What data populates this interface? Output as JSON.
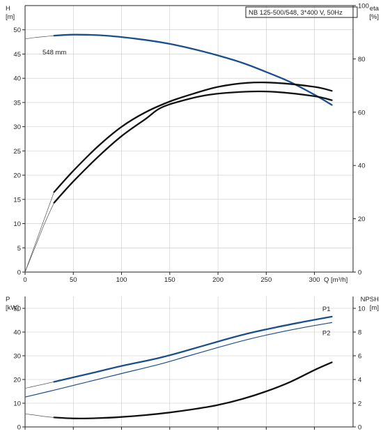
{
  "chart_data": [
    {
      "type": "line",
      "panel": "head-efficiency",
      "title": "NB 125-500/548, 3*400 V, 50Hz",
      "xlabel": "Q [m³/h]",
      "x_ticks": [
        0,
        50,
        100,
        150,
        200,
        250,
        300
      ],
      "xlim": [
        0,
        340
      ],
      "left_axis": {
        "label_top": "H",
        "label_unit": "[m]",
        "ylim": [
          0,
          55
        ],
        "ticks": [
          0,
          5,
          10,
          15,
          20,
          25,
          30,
          35,
          40,
          45,
          50
        ]
      },
      "right_axis": {
        "label_top": "eta",
        "label_unit": "[%]",
        "ylim": [
          0,
          100
        ],
        "ticks": [
          0,
          20,
          40,
          60,
          80,
          100
        ]
      },
      "grid": true,
      "annotations": [
        "548 mm"
      ],
      "series": [
        {
          "axis": "left",
          "style": "blue-thick",
          "x": [
            30,
            50,
            75,
            100,
            125,
            150,
            175,
            200,
            225,
            250,
            275,
            300,
            318
          ],
          "y": [
            48.8,
            49.0,
            48.9,
            48.5,
            47.9,
            47.1,
            46.0,
            44.7,
            43.2,
            41.3,
            39.2,
            36.6,
            34.5
          ]
        },
        {
          "axis": "left",
          "style": "thin-extension",
          "x": [
            0,
            10,
            20,
            30
          ],
          "y": [
            48.1,
            48.4,
            48.6,
            48.8
          ]
        },
        {
          "axis": "right",
          "style": "black-thick",
          "x": [
            30,
            50,
            75,
            100,
            125,
            140,
            160,
            190,
            230,
            260,
            300,
            318
          ],
          "y": [
            26,
            34,
            43,
            51,
            57.5,
            61.5,
            64,
            66.5,
            67.7,
            67.6,
            66,
            64.5
          ]
        },
        {
          "axis": "right",
          "style": "black-thick",
          "x": [
            30,
            50,
            75,
            100,
            125,
            150,
            175,
            200,
            230,
            260,
            300,
            318
          ],
          "y": [
            30,
            38,
            47,
            54.5,
            60,
            64,
            67,
            69.5,
            71,
            71,
            69.5,
            68
          ]
        },
        {
          "axis": "right",
          "style": "thin-extension",
          "x": [
            0,
            10,
            20,
            30
          ],
          "y": [
            0,
            9,
            18,
            26
          ]
        },
        {
          "axis": "right",
          "style": "thin-extension",
          "x": [
            0,
            10,
            20,
            30
          ],
          "y": [
            0,
            10,
            20,
            30
          ]
        }
      ]
    },
    {
      "type": "line",
      "panel": "power-npsh",
      "xlim": [
        0,
        340
      ],
      "x_ticks": [
        0,
        50,
        100,
        150,
        200,
        250,
        300
      ],
      "left_axis": {
        "label_top": "P",
        "label_unit": "[kW]",
        "ylim": [
          0,
          55
        ],
        "ticks": [
          0,
          10,
          20,
          30,
          40,
          50
        ]
      },
      "right_axis": {
        "label_top": "NPSH",
        "label_unit": "[m]",
        "ylim": [
          0,
          11
        ],
        "ticks": [
          0,
          2,
          4,
          6,
          8,
          10
        ]
      },
      "grid": true,
      "series": [
        {
          "name": "P1",
          "axis": "left",
          "style": "blue-thick",
          "x": [
            30,
            70,
            100,
            140,
            170,
            200,
            230,
            260,
            290,
            318
          ],
          "y": [
            19,
            22.8,
            25.7,
            29.2,
            32.5,
            36,
            39.3,
            42,
            44.4,
            46.5
          ]
        },
        {
          "axis": "left",
          "style": "thin-extension",
          "x": [
            0,
            10,
            20,
            30
          ],
          "y": [
            16.3,
            17.2,
            18.1,
            19
          ]
        },
        {
          "name": "P2",
          "axis": "left",
          "style": "blue-thin",
          "x": [
            0,
            30,
            70,
            100,
            140,
            170,
            200,
            230,
            260,
            290,
            318
          ],
          "y": [
            12.6,
            15.5,
            19.5,
            22.5,
            26.5,
            30,
            33.5,
            36.8,
            39.6,
            42,
            44
          ]
        },
        {
          "axis": "right",
          "style": "black-thick",
          "x": [
            30,
            50,
            75,
            100,
            125,
            150,
            175,
            200,
            225,
            250,
            275,
            300,
            318
          ],
          "y": [
            0.8,
            0.72,
            0.74,
            0.84,
            1.0,
            1.22,
            1.5,
            1.85,
            2.35,
            3.0,
            3.8,
            4.8,
            5.45
          ]
        },
        {
          "axis": "right",
          "style": "thin-extension",
          "x": [
            0,
            10,
            20,
            30
          ],
          "y": [
            1.1,
            1.0,
            0.88,
            0.8
          ]
        }
      ]
    }
  ]
}
